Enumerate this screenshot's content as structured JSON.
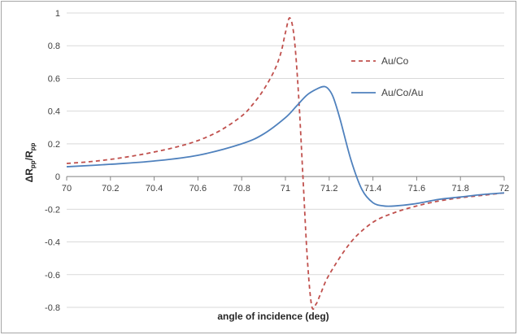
{
  "chart_data": {
    "type": "line",
    "title": "",
    "xlabel": "angle of incidence (deg)",
    "ylabel": "ΔRpp/Rpp",
    "ylabel_parts": {
      "prefix": "ΔR",
      "sub1": "pp",
      "slash": "/R",
      "sub2": "pp"
    },
    "xlim": [
      70,
      72
    ],
    "ylim": [
      -0.8,
      1
    ],
    "x_ticks": [
      70,
      70.2,
      70.4,
      70.6,
      70.8,
      71,
      71.2,
      71.4,
      71.6,
      71.8,
      72
    ],
    "x_tick_labels": [
      "70",
      "70.2",
      "70.4",
      "70.6",
      "70.8",
      "71",
      "71.2",
      "71.4",
      "71.6",
      "71.8",
      "72"
    ],
    "y_ticks": [
      1,
      0.8,
      0.6,
      0.4,
      0.2,
      0,
      -0.2,
      -0.4,
      -0.6,
      -0.8
    ],
    "y_tick_labels": [
      "1",
      "0.8",
      "0.6",
      "0.4",
      "0.2",
      "0",
      "-0.2",
      "-0.4",
      "-0.6",
      "-0.8"
    ],
    "grid": "horizontal",
    "legend_position": "top-right",
    "series": [
      {
        "name": "Au/Co",
        "color": "#c0504d",
        "dash": "dashed",
        "x": [
          70,
          70.1,
          70.2,
          70.3,
          70.4,
          70.5,
          70.6,
          70.7,
          70.8,
          70.85,
          70.9,
          70.95,
          70.98,
          71.0,
          71.02,
          71.04,
          71.06,
          71.08,
          71.1,
          71.12,
          71.14,
          71.16,
          71.2,
          71.3,
          71.4,
          71.5,
          71.6,
          71.7,
          71.8,
          71.9,
          72
        ],
        "y": [
          0.08,
          0.09,
          0.105,
          0.125,
          0.15,
          0.18,
          0.22,
          0.28,
          0.37,
          0.44,
          0.53,
          0.65,
          0.76,
          0.88,
          0.97,
          0.85,
          0.5,
          0.0,
          -0.5,
          -0.79,
          -0.78,
          -0.72,
          -0.6,
          -0.4,
          -0.28,
          -0.22,
          -0.18,
          -0.15,
          -0.13,
          -0.115,
          -0.1
        ]
      },
      {
        "name": "Au/Co/Au",
        "color": "#4f81bd",
        "dash": "solid",
        "x": [
          70,
          70.2,
          70.4,
          70.6,
          70.8,
          70.9,
          71.0,
          71.05,
          71.1,
          71.15,
          71.18,
          71.2,
          71.22,
          71.25,
          71.3,
          71.35,
          71.4,
          71.45,
          71.5,
          71.6,
          71.7,
          71.8,
          71.9,
          72
        ],
        "y": [
          0.06,
          0.075,
          0.095,
          0.13,
          0.2,
          0.26,
          0.36,
          0.43,
          0.5,
          0.54,
          0.55,
          0.53,
          0.48,
          0.35,
          0.1,
          -0.08,
          -0.16,
          -0.18,
          -0.18,
          -0.165,
          -0.14,
          -0.125,
          -0.11,
          -0.1
        ]
      }
    ]
  }
}
